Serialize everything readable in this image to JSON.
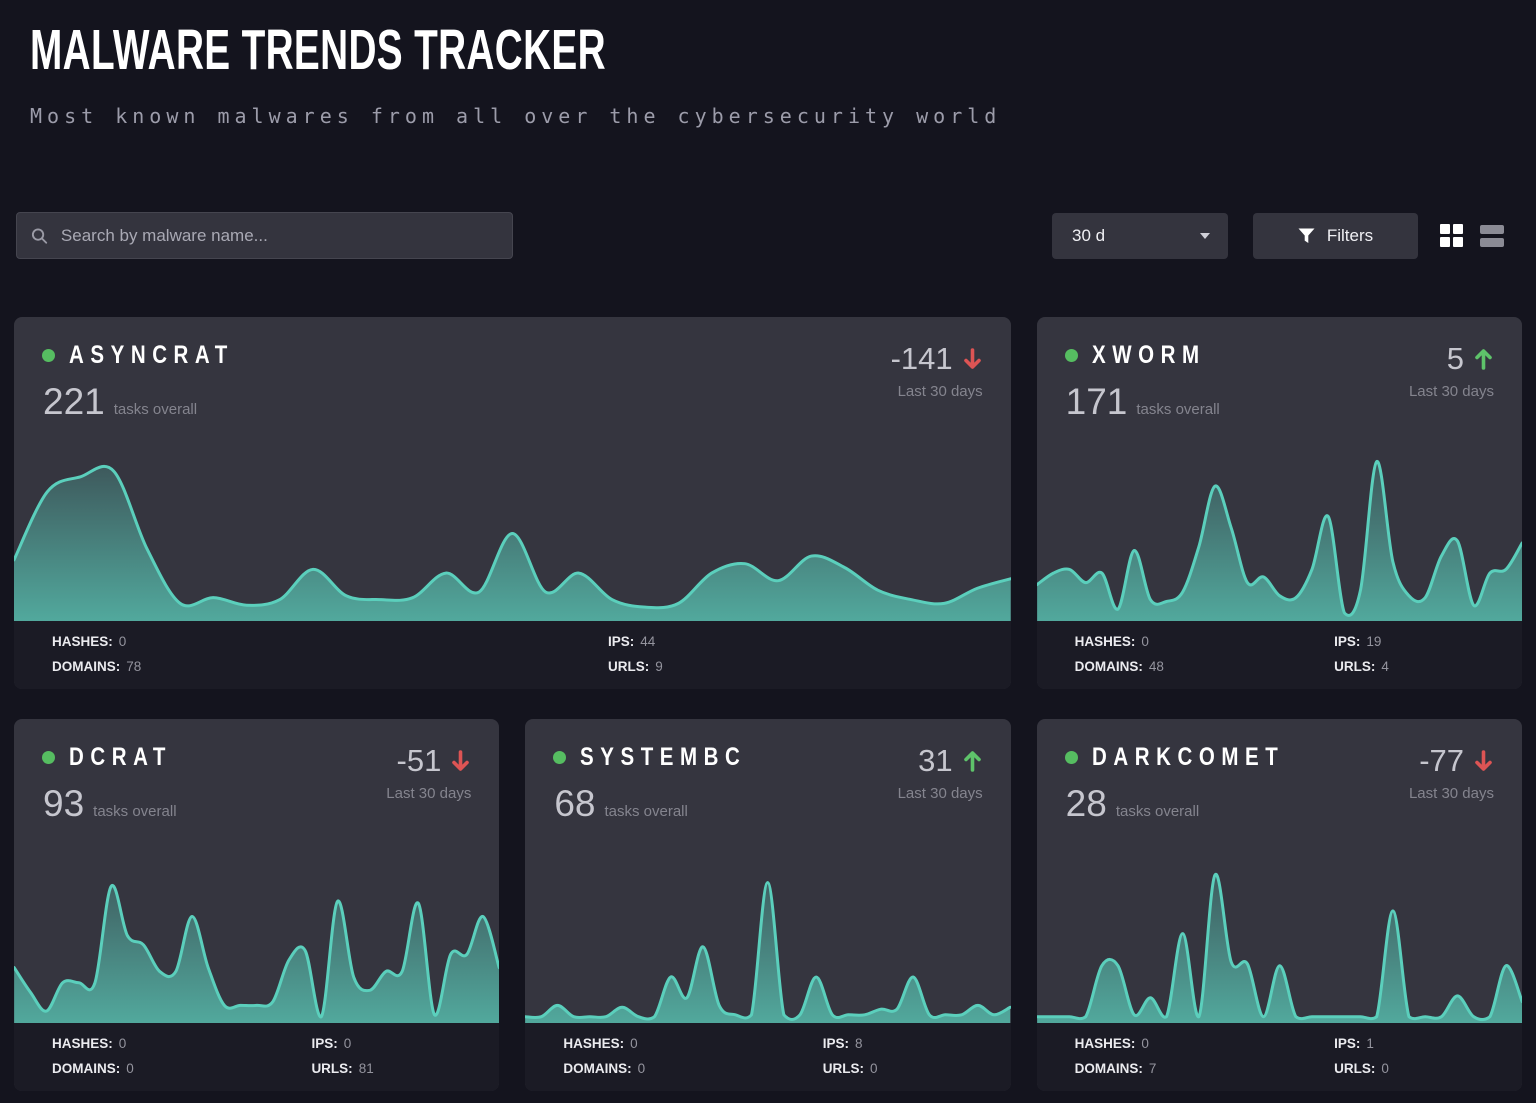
{
  "header": {
    "title": "MALWARE TRENDS TRACKER",
    "subtitle": "Most known malwares from all over the cybersecurity world"
  },
  "toolbar": {
    "search_placeholder": "Search by malware name...",
    "period_value": "30 d",
    "filters_label": "Filters"
  },
  "stats_labels": {
    "hashes": "HASHES:",
    "domains": "DOMAINS:",
    "ips": "IPS:",
    "urls": "URLS:"
  },
  "colors": {
    "accent_teal": "#5BCFBC",
    "positive_green": "#5EC36A",
    "negative_red": "#DD5454",
    "status_dot_green": "#56BD61",
    "card_bg": "#35353F",
    "footer_bg": "#1B1B25",
    "page_bg": "#14141E"
  },
  "cards": [
    {
      "name": "ASYNCRAT",
      "tasks": "221",
      "tasks_label": "tasks overall",
      "delta": "-141",
      "trend": "down",
      "period_label": "Last 30 days",
      "stats": {
        "hashes": "0",
        "domains": "78",
        "ips": "44",
        "urls": "9"
      },
      "spark": [
        31,
        67,
        75,
        78,
        37,
        8,
        11,
        7,
        10,
        26,
        12,
        10,
        11,
        24,
        14,
        45,
        14,
        24,
        10,
        6,
        8,
        24,
        29,
        20,
        33,
        27,
        15,
        10,
        8,
        16,
        21
      ]
    },
    {
      "name": "XWORM",
      "tasks": "171",
      "tasks_label": "tasks overall",
      "delta": "5",
      "trend": "up",
      "period_label": "Last 30 days",
      "stats": {
        "hashes": "0",
        "domains": "48",
        "ips": "19",
        "urls": "4"
      },
      "spark": [
        18,
        24,
        26,
        19,
        24,
        5,
        36,
        10,
        9,
        14,
        38,
        70,
        48,
        19,
        22,
        12,
        11,
        26,
        54,
        3,
        15,
        83,
        30,
        12,
        11,
        33,
        41,
        7,
        24,
        26,
        40
      ]
    },
    {
      "name": "DCRAT",
      "tasks": "93",
      "tasks_label": "tasks overall",
      "delta": "-51",
      "trend": "down",
      "period_label": "Last 30 days",
      "stats": {
        "hashes": "0",
        "domains": "0",
        "ips": "0",
        "urls": "81"
      },
      "spark": [
        28,
        15,
        5,
        20,
        20,
        20,
        71,
        45,
        40,
        26,
        26,
        55,
        28,
        8,
        8,
        8,
        10,
        32,
        37,
        2,
        63,
        23,
        16,
        26,
        26,
        62,
        3,
        35,
        35,
        55,
        28
      ]
    },
    {
      "name": "SYSTEMBC",
      "tasks": "68",
      "tasks_label": "tasks overall",
      "delta": "31",
      "trend": "up",
      "period_label": "Last 30 days",
      "stats": {
        "hashes": "0",
        "domains": "0",
        "ips": "8",
        "urls": "0"
      },
      "spark": [
        2,
        2,
        8,
        2,
        2,
        2,
        7,
        2,
        2,
        23,
        12,
        39,
        8,
        3,
        3,
        73,
        3,
        3,
        23,
        3,
        3,
        3,
        6,
        6,
        23,
        3,
        3,
        3,
        8,
        3,
        7
      ]
    },
    {
      "name": "DARKCOMET",
      "tasks": "28",
      "tasks_label": "tasks overall",
      "delta": "-77",
      "trend": "down",
      "period_label": "Last 30 days",
      "stats": {
        "hashes": "0",
        "domains": "7",
        "ips": "1",
        "urls": "0"
      },
      "spark": [
        2,
        2,
        2,
        2,
        29,
        29,
        3,
        12,
        2,
        46,
        2,
        77,
        31,
        30,
        2,
        29,
        2,
        2,
        2,
        2,
        2,
        2,
        58,
        2,
        2,
        2,
        13,
        2,
        2,
        29,
        10
      ]
    }
  ]
}
